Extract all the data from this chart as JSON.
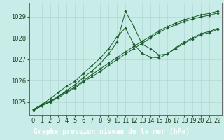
{
  "background_color": "#c8ece8",
  "plot_bg_color": "#c8ece8",
  "label_bg_color": "#2d6b2d",
  "grid_color": "#b0d8d4",
  "line_color": "#1a5c2a",
  "x": [
    0,
    1,
    2,
    3,
    4,
    5,
    6,
    7,
    8,
    9,
    10,
    11,
    12,
    13,
    14,
    15,
    16,
    17,
    18,
    19,
    20,
    21,
    22
  ],
  "series": [
    [
      1024.65,
      1024.88,
      1025.05,
      1025.25,
      1025.5,
      1025.7,
      1026.0,
      1026.28,
      1026.55,
      1026.82,
      1027.08,
      1027.35,
      1027.6,
      1027.85,
      1028.08,
      1028.33,
      1028.53,
      1028.7,
      1028.85,
      1028.97,
      1029.08,
      1029.15,
      1029.25
    ],
    [
      1024.6,
      1024.82,
      1025.0,
      1025.2,
      1025.45,
      1025.65,
      1025.95,
      1026.18,
      1026.44,
      1026.72,
      1026.98,
      1027.25,
      1027.5,
      1027.75,
      1028.0,
      1028.26,
      1028.46,
      1028.62,
      1028.77,
      1028.89,
      1028.99,
      1029.06,
      1029.17
    ],
    [
      1024.65,
      1024.88,
      1025.15,
      1025.45,
      1025.75,
      1025.97,
      1026.35,
      1026.7,
      1027.05,
      1027.5,
      1028.05,
      1028.47,
      1027.7,
      1027.28,
      1027.1,
      1027.07,
      1027.25,
      1027.5,
      1027.75,
      1027.95,
      1028.15,
      1028.25,
      1028.4
    ],
    [
      1024.62,
      1024.83,
      1025.02,
      1025.25,
      1025.55,
      1025.8,
      1026.15,
      1026.45,
      1026.8,
      1027.25,
      1027.8,
      1029.25,
      1028.55,
      1027.7,
      1027.5,
      1027.2,
      1027.25,
      1027.55,
      1027.8,
      1028.0,
      1028.2,
      1028.3,
      1028.45
    ]
  ],
  "ylim": [
    1024.4,
    1029.65
  ],
  "yticks": [
    1025,
    1026,
    1027,
    1028,
    1029
  ],
  "xticks": [
    0,
    1,
    2,
    3,
    4,
    5,
    6,
    7,
    8,
    9,
    10,
    11,
    12,
    13,
    14,
    15,
    16,
    17,
    18,
    19,
    20,
    21,
    22
  ],
  "xlabel": "Graphe pression niveau de la mer (hPa)",
  "xlabel_fontsize": 7,
  "tick_fontsize": 6,
  "marker_size": 1.8,
  "line_width": 0.7
}
